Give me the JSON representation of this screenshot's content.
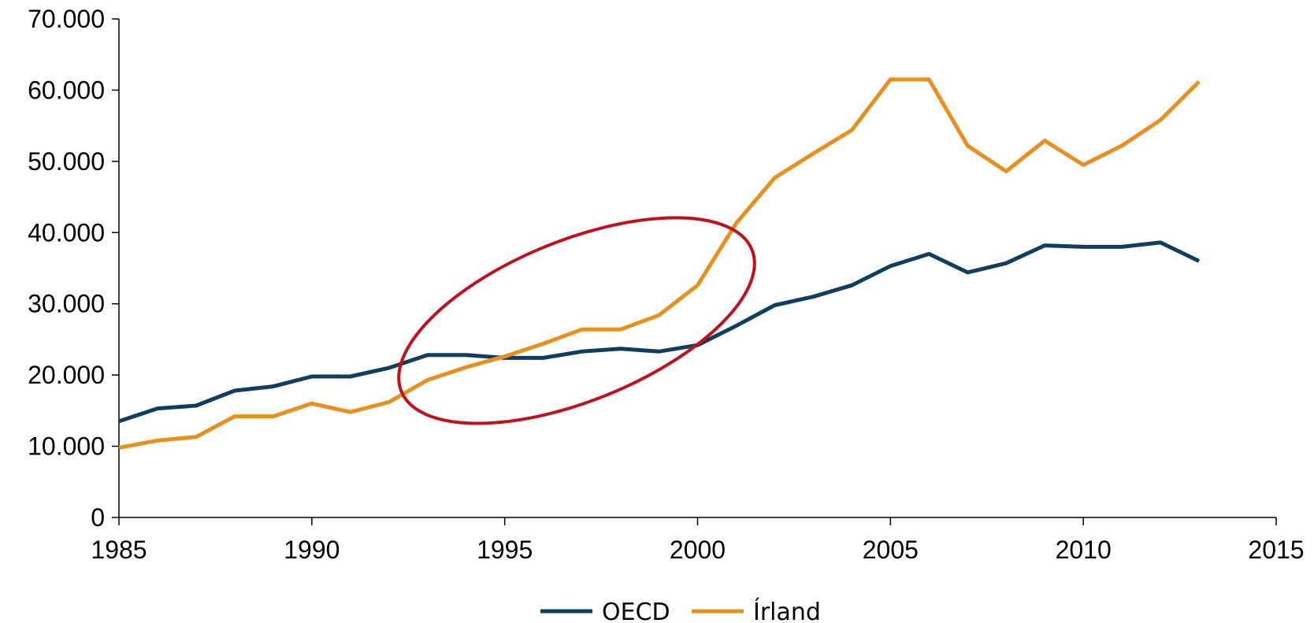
{
  "chart_data": {
    "type": "line",
    "title": "",
    "xlabel": "",
    "ylabel": "",
    "xlim": [
      1985,
      2015
    ],
    "ylim": [
      0,
      70000
    ],
    "x_ticks": [
      1985,
      1990,
      1995,
      2000,
      2005,
      2010,
      2015
    ],
    "x_tick_labels": [
      "1985",
      "1990",
      "1995",
      "2000",
      "2005",
      "2010",
      "2015"
    ],
    "y_ticks": [
      0,
      10000,
      20000,
      30000,
      40000,
      50000,
      60000,
      70000
    ],
    "y_tick_labels": [
      "0",
      "10.000",
      "20.000",
      "30.000",
      "40.000",
      "50.000",
      "60.000",
      "70.000"
    ],
    "grid": false,
    "legend_position": "bottom-center",
    "x": [
      1985,
      1986,
      1987,
      1988,
      1989,
      1990,
      1991,
      1992,
      1993,
      1994,
      1995,
      1996,
      1997,
      1998,
      1999,
      2000,
      2001,
      2002,
      2003,
      2004,
      2005,
      2006,
      2007,
      2008,
      2009,
      2010,
      2011,
      2012,
      2013
    ],
    "series": [
      {
        "name": "OECD",
        "color": "#123e5e",
        "values": [
          13500,
          15300,
          15700,
          17800,
          18400,
          19800,
          19800,
          21000,
          22800,
          22800,
          22400,
          22400,
          23300,
          23700,
          23300,
          24200,
          26900,
          29800,
          31000,
          32600,
          35300,
          37000,
          34400,
          35700,
          38200,
          38000,
          38000,
          38600,
          36000
        ]
      },
      {
        "name": "Írland",
        "color": "#e8901d",
        "values": [
          9800,
          10800,
          11300,
          14200,
          14200,
          16000,
          14800,
          16200,
          19300,
          21100,
          22600,
          24400,
          26400,
          26400,
          28400,
          32600,
          41300,
          47700,
          51100,
          54400,
          61500,
          61500,
          52200,
          48600,
          52900,
          49500,
          52200,
          55800,
          61200
        ]
      }
    ],
    "annotations": [
      {
        "type": "ellipse",
        "color": "#c0111d",
        "highlights": "1993–2003"
      }
    ]
  }
}
